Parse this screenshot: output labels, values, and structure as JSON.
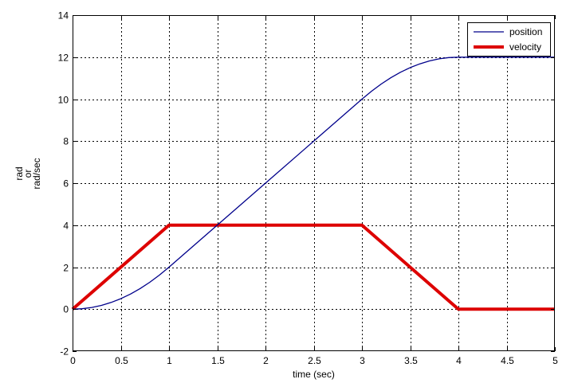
{
  "chart_data": {
    "type": "line",
    "title": "",
    "xlabel": "time (sec)",
    "ylabel_lines": [
      "rad",
      "or",
      "rad/sec"
    ],
    "xlim": [
      0,
      5
    ],
    "ylim": [
      -2,
      14
    ],
    "xticks": [
      0,
      0.5,
      1,
      1.5,
      2,
      2.5,
      3,
      3.5,
      4,
      4.5,
      5
    ],
    "xtick_labels": [
      "0",
      "0.5",
      "1",
      "1.5",
      "2",
      "2.5",
      "3",
      "3.5",
      "4",
      "4.5",
      "5"
    ],
    "yticks": [
      -2,
      0,
      2,
      4,
      6,
      8,
      10,
      12,
      14
    ],
    "ytick_labels": [
      "-2",
      "0",
      "2",
      "4",
      "6",
      "8",
      "10",
      "12",
      "14"
    ],
    "grid": true,
    "legend_position": "top-right",
    "series": [
      {
        "name": "position",
        "color": "#00008b",
        "x": [
          0,
          0.1,
          0.2,
          0.3,
          0.4,
          0.5,
          0.6,
          0.7,
          0.8,
          0.9,
          1,
          1.5,
          2,
          2.5,
          3,
          3.1,
          3.2,
          3.3,
          3.4,
          3.5,
          3.6,
          3.7,
          3.8,
          3.9,
          4,
          4.5,
          5
        ],
        "values": [
          0,
          0.02,
          0.08,
          0.18,
          0.32,
          0.5,
          0.72,
          0.98,
          1.28,
          1.62,
          2,
          4,
          6,
          8,
          10,
          10.38,
          10.72,
          11.02,
          11.28,
          11.5,
          11.68,
          11.82,
          11.92,
          11.98,
          12,
          12,
          12
        ]
      },
      {
        "name": "velocity",
        "color": "#dd0000",
        "x": [
          0,
          1,
          3,
          4,
          5
        ],
        "values": [
          0,
          4,
          4,
          0,
          0
        ]
      }
    ]
  }
}
